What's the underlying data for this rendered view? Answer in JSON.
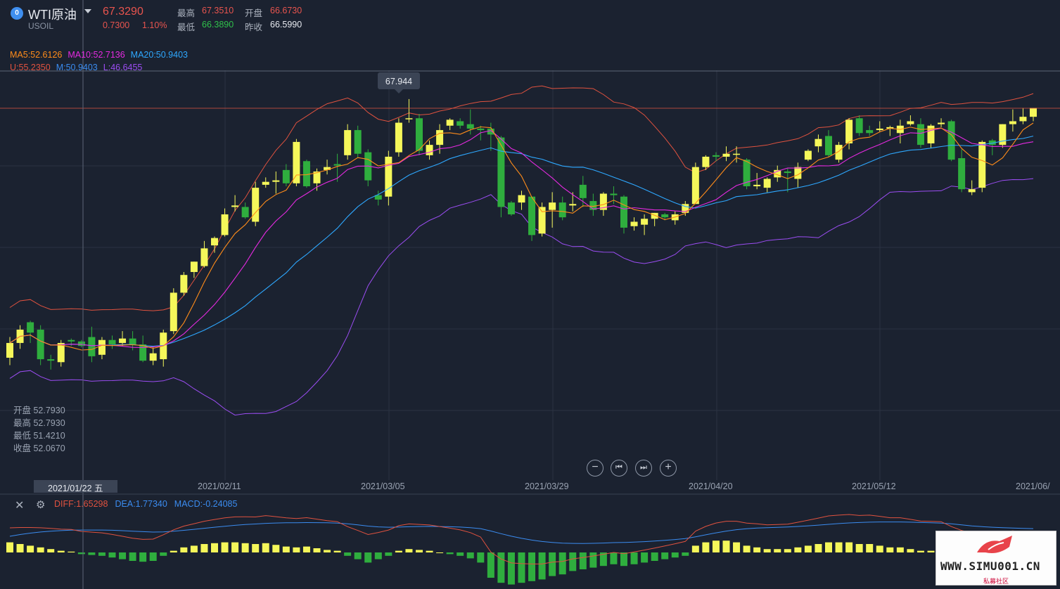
{
  "header": {
    "name": "WTI原油",
    "code": "USOIL",
    "price": "67.3290",
    "change": "0.7300",
    "change_pct": "1.10%",
    "high_label": "最高",
    "high": "67.3510",
    "open_label": "开盘",
    "open": "66.6730",
    "low_label": "最低",
    "low": "66.3890",
    "prev_label": "昨收",
    "prev": "66.5990"
  },
  "indicators": {
    "ma5": "MA5:52.6126",
    "ma10": "MA10:52.7136",
    "ma20": "MA20:50.9403",
    "u": "U:55.2350",
    "m": "M:50.9403",
    "l": "L:46.6455"
  },
  "peak_label": "67.944",
  "crosshair_ohlc": {
    "open": "开盘 52.7930",
    "high": "最高 52.7930",
    "low": "最低 51.4210",
    "close": "收盘 52.0670"
  },
  "dates": {
    "cursor": "2021/01/22 五",
    "ticks": [
      "2021/02/11",
      "2021/03/05",
      "2021/03/29",
      "2021/04/20",
      "2021/05/12",
      "2021/06/"
    ]
  },
  "macd": {
    "diff": "DIFF:1.65298",
    "dea": "DEA:1.77340",
    "macd": "MACD:-0.24085"
  },
  "colors": {
    "up": "#f5f75a",
    "down": "#2fae3e",
    "ma5": "#ff8c1a",
    "ma10": "#e52ae0",
    "ma20": "#2ea8ff",
    "boll_u": "#e0523f",
    "boll_m": "#3b8cf0",
    "boll_l": "#9b4df2"
  },
  "watermark": {
    "text": "WWW.SIMU001.CN",
    "sub": "私募社区"
  },
  "chart_data": {
    "type": "candlestick",
    "candles": [
      [
        50.4,
        51.8,
        49.9,
        51.4
      ],
      [
        51.4,
        52.6,
        51.0,
        52.3
      ],
      [
        52.8,
        52.9,
        51.4,
        52.1
      ],
      [
        52.3,
        52.6,
        49.9,
        50.3
      ],
      [
        50.3,
        50.6,
        49.6,
        50.2
      ],
      [
        50.1,
        51.6,
        49.8,
        51.4
      ],
      [
        51.6,
        51.7,
        51.2,
        51.5
      ],
      [
        51.5,
        51.6,
        51.1,
        51.2
      ],
      [
        51.8,
        52.5,
        50.1,
        50.5
      ],
      [
        50.6,
        51.8,
        50.3,
        51.6
      ],
      [
        51.6,
        51.9,
        51.0,
        51.3
      ],
      [
        51.4,
        52.2,
        51.2,
        51.7
      ],
      [
        51.7,
        52.2,
        50.9,
        51.3
      ],
      [
        51.3,
        51.9,
        50.1,
        50.2
      ],
      [
        50.2,
        51.1,
        49.9,
        50.7
      ],
      [
        50.3,
        52.3,
        49.8,
        52.1
      ],
      [
        52.2,
        55.1,
        52.0,
        54.8
      ],
      [
        54.8,
        56.2,
        54.6,
        56.0
      ],
      [
        56.2,
        56.9,
        55.8,
        56.9
      ],
      [
        56.6,
        58.3,
        56.5,
        57.8
      ],
      [
        58.0,
        58.6,
        57.5,
        58.5
      ],
      [
        58.7,
        60.5,
        58.6,
        60.1
      ],
      [
        60.6,
        61.4,
        60.3,
        60.7
      ],
      [
        60.6,
        60.9,
        59.8,
        59.9
      ],
      [
        59.6,
        62.3,
        59.3,
        61.9
      ],
      [
        62.1,
        62.6,
        61.9,
        62.3
      ],
      [
        62.3,
        63.0,
        61.5,
        62.4
      ],
      [
        63.1,
        63.5,
        62.0,
        62.2
      ],
      [
        62.2,
        65.2,
        62.0,
        65.0
      ],
      [
        63.7,
        63.8,
        61.9,
        62.0
      ],
      [
        62.2,
        63.2,
        61.7,
        63.0
      ],
      [
        63.1,
        63.8,
        62.8,
        63.3
      ],
      [
        63.5,
        64.2,
        62.3,
        63.4
      ],
      [
        64.1,
        66.2,
        63.8,
        65.8
      ],
      [
        65.8,
        66.1,
        63.9,
        64.2
      ],
      [
        64.3,
        64.5,
        62.0,
        62.4
      ],
      [
        61.4,
        61.7,
        60.7,
        61.1
      ],
      [
        61.3,
        64.4,
        60.7,
        64.0
      ],
      [
        64.3,
        66.6,
        64.0,
        66.3
      ],
      [
        66.6,
        67.9,
        66.3,
        66.6
      ],
      [
        66.6,
        66.9,
        64.1,
        64.4
      ],
      [
        64.1,
        65.1,
        63.8,
        64.8
      ],
      [
        64.8,
        66.2,
        64.2,
        65.8
      ],
      [
        66.1,
        66.6,
        65.8,
        66.5
      ],
      [
        66.4,
        66.6,
        65.9,
        66.1
      ],
      [
        66.2,
        67.2,
        65.5,
        65.9
      ],
      [
        65.9,
        66.1,
        65.1,
        65.8
      ],
      [
        65.9,
        66.3,
        64.4,
        65.5
      ],
      [
        65.3,
        65.4,
        59.9,
        60.6
      ],
      [
        60.9,
        61.0,
        60.0,
        60.1
      ],
      [
        60.9,
        61.7,
        60.4,
        61.4
      ],
      [
        61.3,
        61.3,
        58.3,
        58.7
      ],
      [
        58.8,
        60.9,
        58.6,
        60.6
      ],
      [
        60.4,
        61.6,
        59.2,
        60.9
      ],
      [
        60.9,
        61.3,
        59.7,
        59.9
      ],
      [
        60.7,
        61.6,
        60.3,
        60.8
      ],
      [
        62.1,
        62.7,
        60.6,
        61.2
      ],
      [
        61.0,
        61.5,
        60.0,
        60.4
      ],
      [
        60.4,
        61.6,
        60.0,
        61.5
      ],
      [
        61.5,
        62.0,
        60.8,
        61.4
      ],
      [
        61.3,
        61.4,
        58.8,
        59.2
      ],
      [
        59.3,
        59.9,
        59.0,
        59.6
      ],
      [
        59.4,
        60.1,
        58.7,
        59.8
      ],
      [
        59.8,
        60.2,
        59.3,
        60.2
      ],
      [
        60.1,
        60.2,
        59.7,
        59.9
      ],
      [
        59.7,
        60.3,
        59.4,
        60.1
      ],
      [
        60.2,
        61.0,
        60.0,
        60.8
      ],
      [
        60.8,
        63.6,
        60.8,
        63.3
      ],
      [
        63.3,
        64.1,
        63.1,
        64.0
      ],
      [
        64.1,
        64.3,
        63.7,
        64.0
      ],
      [
        64.0,
        64.7,
        63.7,
        64.2
      ],
      [
        64.2,
        64.7,
        63.6,
        64.2
      ],
      [
        63.8,
        63.9,
        61.8,
        62.0
      ],
      [
        62.0,
        62.9,
        61.8,
        62.1
      ],
      [
        61.9,
        62.6,
        61.6,
        62.5
      ],
      [
        62.6,
        63.4,
        62.3,
        63.1
      ],
      [
        63.0,
        63.2,
        61.6,
        62.9
      ],
      [
        62.5,
        63.6,
        61.9,
        63.3
      ],
      [
        63.8,
        64.5,
        63.7,
        64.4
      ],
      [
        64.7,
        65.5,
        64.3,
        65.2
      ],
      [
        65.4,
        65.8,
        64.0,
        64.1
      ],
      [
        63.8,
        65.0,
        63.6,
        64.8
      ],
      [
        64.9,
        66.6,
        64.5,
        66.5
      ],
      [
        66.6,
        66.8,
        65.4,
        65.6
      ],
      [
        65.8,
        66.1,
        65.4,
        65.6
      ],
      [
        65.8,
        66.4,
        65.7,
        65.9
      ],
      [
        65.9,
        66.1,
        65.4,
        66.0
      ],
      [
        65.6,
        66.5,
        64.9,
        66.1
      ],
      [
        66.2,
        66.8,
        66.1,
        66.4
      ],
      [
        66.2,
        66.6,
        64.6,
        64.8
      ],
      [
        64.9,
        66.2,
        64.6,
        66.1
      ],
      [
        66.2,
        66.6,
        66.0,
        66.3
      ],
      [
        66.4,
        66.5,
        63.7,
        63.8
      ],
      [
        63.9,
        64.5,
        61.6,
        61.8
      ],
      [
        61.6,
        62.4,
        61.4,
        61.8
      ],
      [
        61.9,
        65.1,
        61.6,
        65.0
      ],
      [
        65.1,
        65.2,
        64.1,
        64.8
      ],
      [
        64.8,
        66.2,
        64.6,
        66.2
      ],
      [
        66.2,
        67.2,
        65.7,
        66.4
      ],
      [
        66.4,
        67.3,
        66.2,
        66.7
      ],
      [
        66.7,
        67.3,
        66.4,
        67.3
      ]
    ],
    "macd_hist": [
      0.6,
      0.5,
      0.4,
      0.3,
      0.2,
      0.1,
      0.05,
      -0.1,
      -0.15,
      -0.2,
      -0.3,
      -0.4,
      -0.5,
      -0.55,
      -0.5,
      -0.2,
      0.1,
      0.3,
      0.4,
      0.5,
      0.55,
      0.6,
      0.6,
      0.55,
      0.5,
      0.55,
      0.45,
      0.35,
      0.3,
      0.35,
      0.25,
      0.15,
      0.1,
      -0.2,
      -0.4,
      -0.6,
      -0.4,
      -0.2,
      0.1,
      0.2,
      0.15,
      0.1,
      0.0,
      -0.1,
      -0.2,
      -0.35,
      -0.6,
      -1.5,
      -1.8,
      -1.9,
      -1.8,
      -1.7,
      -1.6,
      -1.4,
      -1.3,
      -1.1,
      -1.0,
      -0.9,
      -0.8,
      -0.7,
      -0.8,
      -0.7,
      -0.6,
      -0.5,
      -0.4,
      -0.3,
      -0.2,
      0.4,
      0.6,
      0.7,
      0.7,
      0.6,
      0.4,
      0.3,
      0.2,
      0.2,
      0.2,
      0.3,
      0.4,
      0.5,
      0.6,
      0.6,
      0.6,
      0.5,
      0.5,
      0.4,
      0.3,
      0.3,
      0.2,
      0.1,
      0.1,
      0.1,
      -0.2,
      -0.4,
      -0.5,
      -0.4,
      -0.3,
      -0.3,
      -0.2,
      -0.25,
      -0.24
    ]
  }
}
